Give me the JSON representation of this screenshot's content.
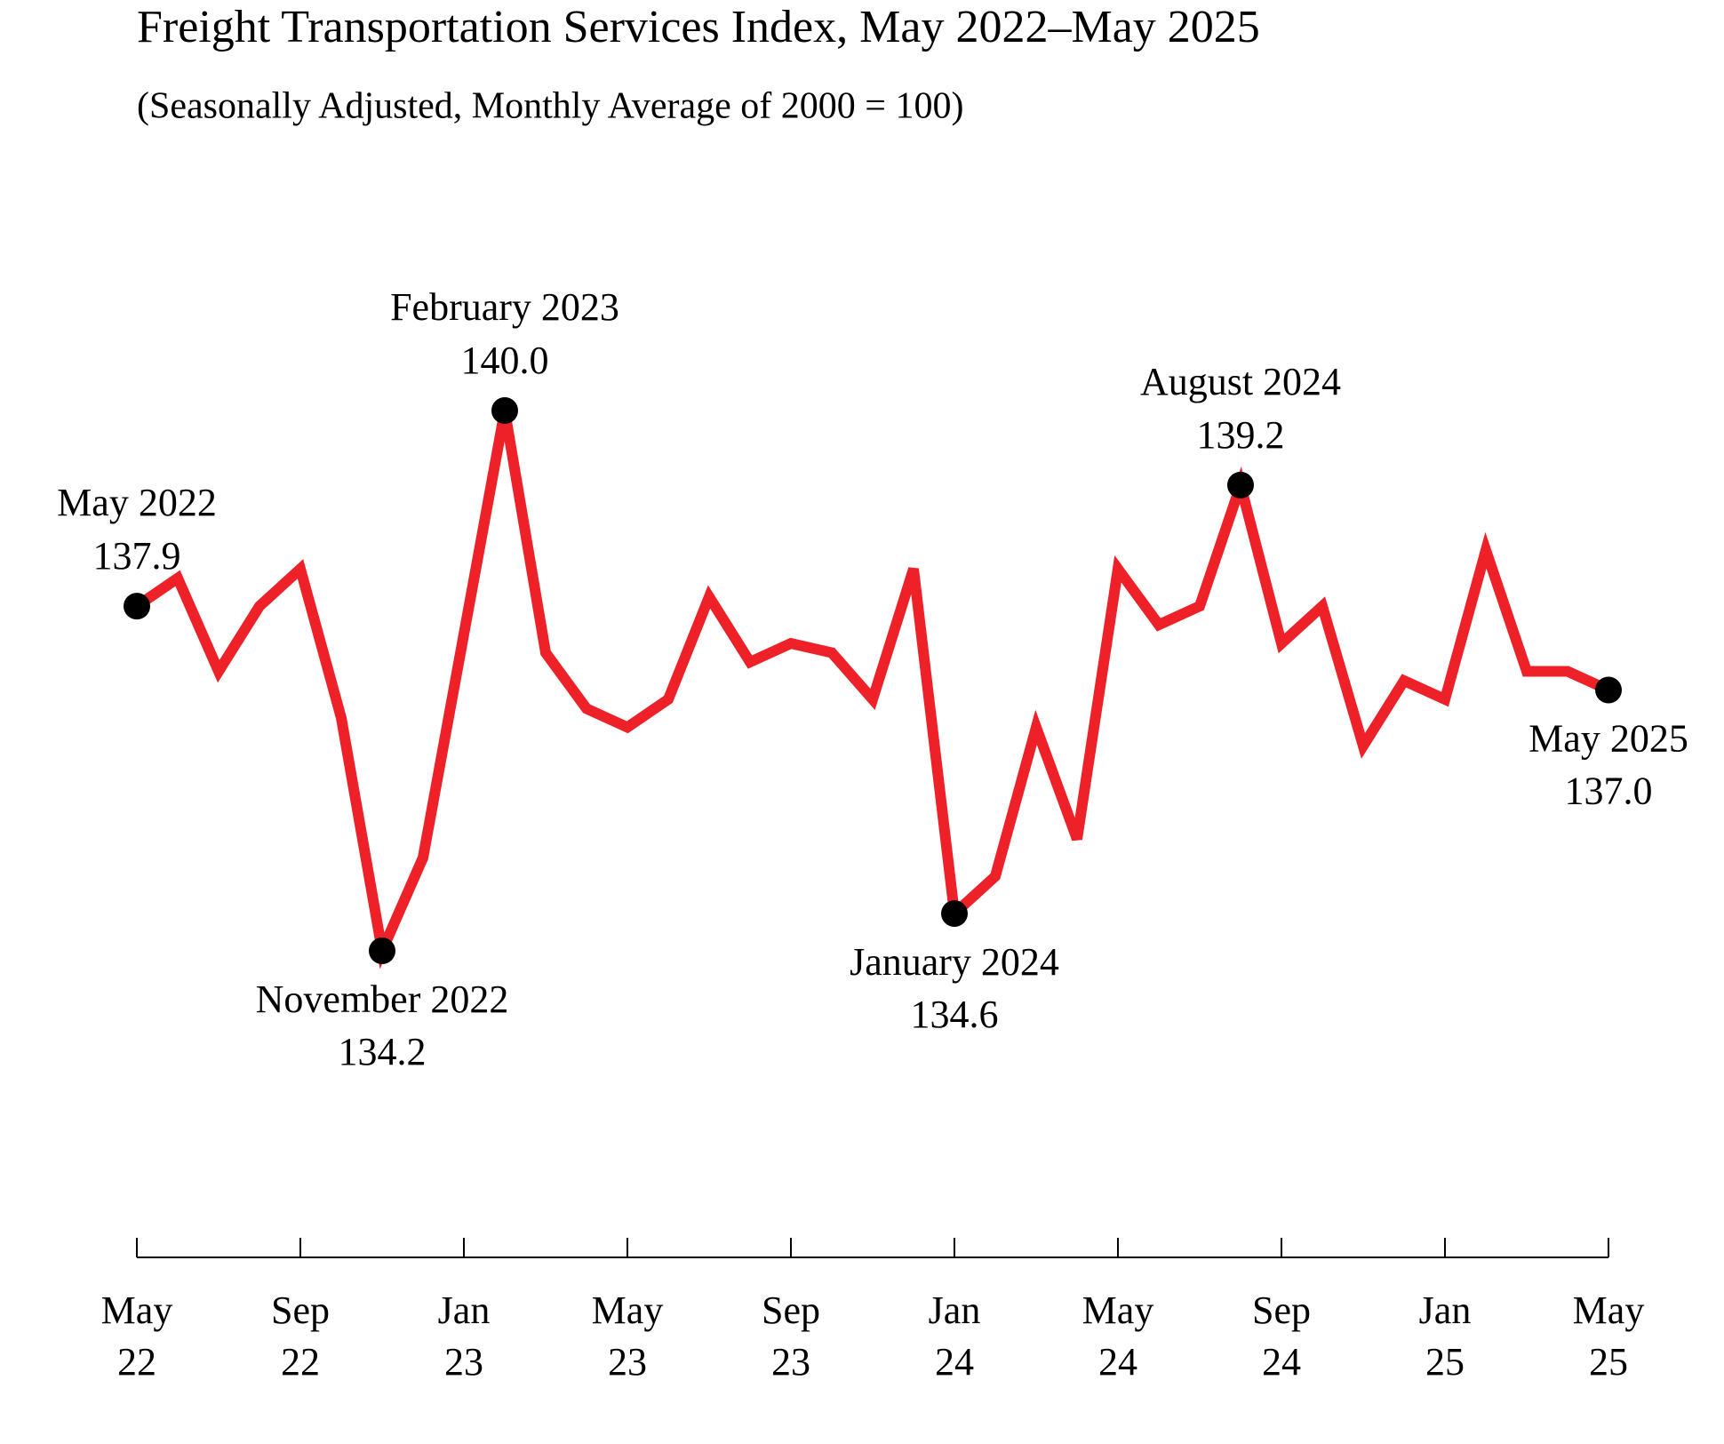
{
  "chart_data": {
    "type": "line",
    "title": "Freight Transportation Services Index, May 2022–May 2025",
    "subtitle": "(Seasonally Adjusted, Monthly Average of 2000 = 100)",
    "categories": [
      [
        "May",
        "22"
      ],
      null,
      null,
      null,
      [
        "Sep",
        "22"
      ],
      null,
      null,
      null,
      [
        "Jan",
        "23"
      ],
      null,
      null,
      null,
      [
        "May",
        "23"
      ],
      null,
      null,
      null,
      [
        "Sep",
        "23"
      ],
      null,
      null,
      null,
      [
        "Jan",
        "24"
      ],
      null,
      null,
      null,
      [
        "May",
        "24"
      ],
      null,
      null,
      null,
      [
        "Sep",
        "24"
      ],
      null,
      null,
      null,
      [
        "Jan",
        "25"
      ],
      null,
      null,
      null,
      [
        "May",
        "25"
      ]
    ],
    "color": "#ee2128",
    "values": [
      137.9,
      138.2,
      137.2,
      137.9,
      138.3,
      136.7,
      134.2,
      135.2,
      137.6,
      140.0,
      137.4,
      136.8,
      136.6,
      136.9,
      138.0,
      137.3,
      137.5,
      137.4,
      136.9,
      138.3,
      134.6,
      135.0,
      136.6,
      135.4,
      138.3,
      137.7,
      137.9,
      139.2,
      137.5,
      137.9,
      136.4,
      137.1,
      136.9,
      138.5,
      137.2,
      137.2,
      137.0
    ],
    "point_labels": [
      "May 2022",
      null,
      null,
      null,
      null,
      null,
      "November 2022",
      null,
      null,
      "February 2023",
      null,
      null,
      null,
      null,
      null,
      null,
      null,
      null,
      null,
      null,
      "January 2024",
      null,
      null,
      null,
      null,
      null,
      null,
      "August 2024",
      null,
      null,
      null,
      null,
      null,
      null,
      null,
      null,
      "May 2025"
    ],
    "value_labels": [
      "137.9",
      null,
      null,
      null,
      null,
      null,
      "134.2",
      null,
      null,
      "140.0",
      null,
      null,
      null,
      null,
      null,
      null,
      null,
      null,
      null,
      null,
      "134.6",
      null,
      null,
      null,
      null,
      null,
      null,
      "139.2",
      null,
      null,
      null,
      null,
      null,
      null,
      null,
      null,
      "137.0"
    ],
    "marker_color": "#000000"
  }
}
